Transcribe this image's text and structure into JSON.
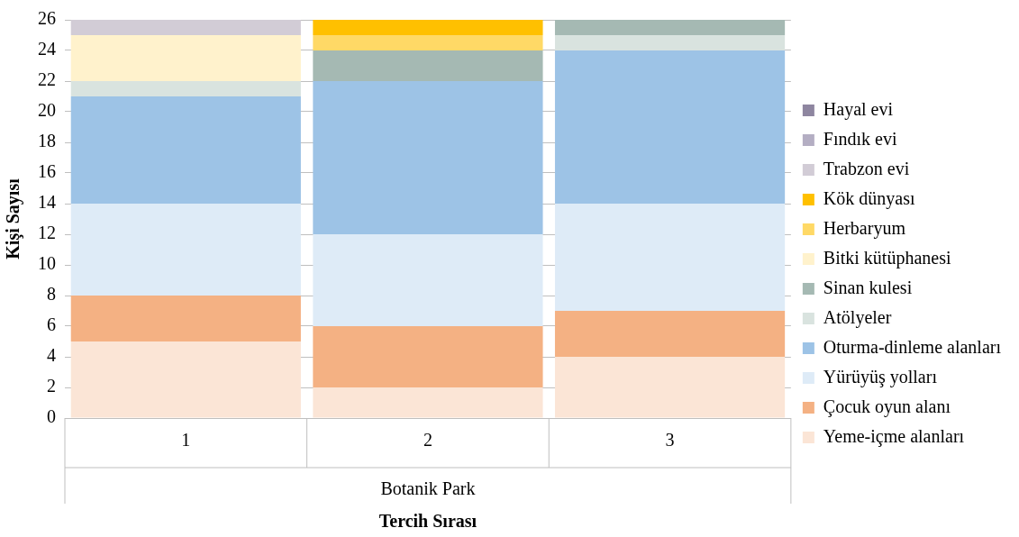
{
  "chart_data": {
    "type": "bar",
    "stacked": true,
    "xlabel": "Tercih Sırası",
    "ylabel": "Kişi Sayısı",
    "categories": [
      "1",
      "2",
      "3"
    ],
    "annotations": [
      "Botanik Park"
    ],
    "ylim": [
      0,
      26
    ],
    "yticks": [
      0,
      2,
      4,
      6,
      8,
      10,
      12,
      14,
      16,
      18,
      20,
      22,
      24,
      26
    ],
    "grid": "y",
    "legend": "right",
    "series": [
      {
        "name": "Yeme-içme alanları",
        "color": "#fbe5d6",
        "values": [
          5,
          2,
          4
        ]
      },
      {
        "name": "Çocuk oyun alanı",
        "color": "#f4b183",
        "values": [
          3,
          4,
          3
        ]
      },
      {
        "name": "Yürüyüş yolları",
        "color": "#deebf7",
        "values": [
          6,
          6,
          7
        ]
      },
      {
        "name": "Oturma-dinleme alanları",
        "color": "#9dc3e6",
        "values": [
          7,
          10,
          10
        ]
      },
      {
        "name": "Atölyeler",
        "color": "#d9e3df",
        "values": [
          1,
          0,
          1
        ]
      },
      {
        "name": "Sinan kulesi",
        "color": "#a5b9b3",
        "values": [
          0,
          2,
          1
        ]
      },
      {
        "name": "Bitki kütüphanesi",
        "color": "#fff2cc",
        "values": [
          3,
          0,
          0
        ]
      },
      {
        "name": "Herbaryum",
        "color": "#ffd966",
        "values": [
          0,
          1,
          0
        ]
      },
      {
        "name": "Kök dünyası",
        "color": "#ffc000",
        "values": [
          0,
          1,
          0
        ]
      },
      {
        "name": "Trabzon evi",
        "color": "#d2ccd6",
        "values": [
          1,
          0,
          0
        ]
      },
      {
        "name": "Fındık evi",
        "color": "#b4aec3",
        "values": [
          0,
          0,
          0
        ]
      },
      {
        "name": "Hayal evi",
        "color": "#8e86a0",
        "values": [
          0,
          0,
          0
        ]
      }
    ]
  }
}
